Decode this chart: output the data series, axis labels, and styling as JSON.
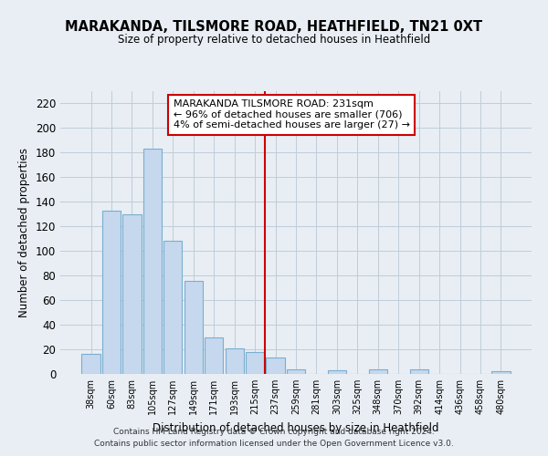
{
  "title": "MARAKANDA, TILSMORE ROAD, HEATHFIELD, TN21 0XT",
  "subtitle": "Size of property relative to detached houses in Heathfield",
  "xlabel": "Distribution of detached houses by size in Heathfield",
  "ylabel": "Number of detached properties",
  "bar_labels": [
    "38sqm",
    "60sqm",
    "83sqm",
    "105sqm",
    "127sqm",
    "149sqm",
    "171sqm",
    "193sqm",
    "215sqm",
    "237sqm",
    "259sqm",
    "281sqm",
    "303sqm",
    "325sqm",
    "348sqm",
    "370sqm",
    "392sqm",
    "414sqm",
    "436sqm",
    "458sqm",
    "480sqm"
  ],
  "bar_values": [
    16,
    133,
    130,
    183,
    108,
    76,
    30,
    21,
    18,
    13,
    4,
    0,
    3,
    0,
    4,
    0,
    4,
    0,
    0,
    0,
    2
  ],
  "bar_color": "#c5d8ed",
  "bar_edge_color": "#7aaed0",
  "vline_x": 9.5,
  "vline_color": "#cc0000",
  "annotation_line1": "MARAKANDA TILSMORE ROAD: 231sqm",
  "annotation_line2": "← 96% of detached houses are smaller (706)",
  "annotation_line3": "4% of semi-detached houses are larger (27) →",
  "ylim": [
    0,
    230
  ],
  "yticks": [
    0,
    20,
    40,
    60,
    80,
    100,
    120,
    140,
    160,
    180,
    200,
    220
  ],
  "footer_line1": "Contains HM Land Registry data © Crown copyright and database right 2024.",
  "footer_line2": "Contains public sector information licensed under the Open Government Licence v3.0.",
  "background_color": "#e8eef4",
  "plot_bg_color": "#e8eef4",
  "grid_color": "#c0ccd8"
}
